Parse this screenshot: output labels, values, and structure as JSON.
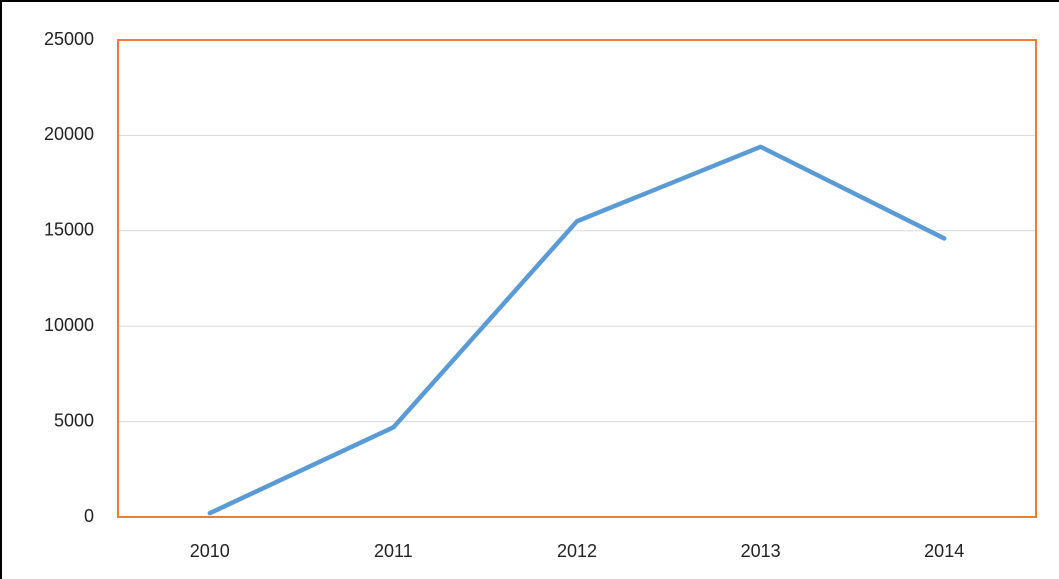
{
  "chart_data": {
    "type": "line",
    "categories": [
      "2010",
      "2011",
      "2012",
      "2013",
      "2014"
    ],
    "series": [
      {
        "color": "#5b9bd5",
        "values": [
          200,
          4700,
          15500,
          19400,
          14600
        ]
      }
    ],
    "ylim": [
      0,
      25000
    ],
    "yticks": [
      0,
      5000,
      10000,
      15000,
      20000,
      25000
    ],
    "grid": true
  }
}
